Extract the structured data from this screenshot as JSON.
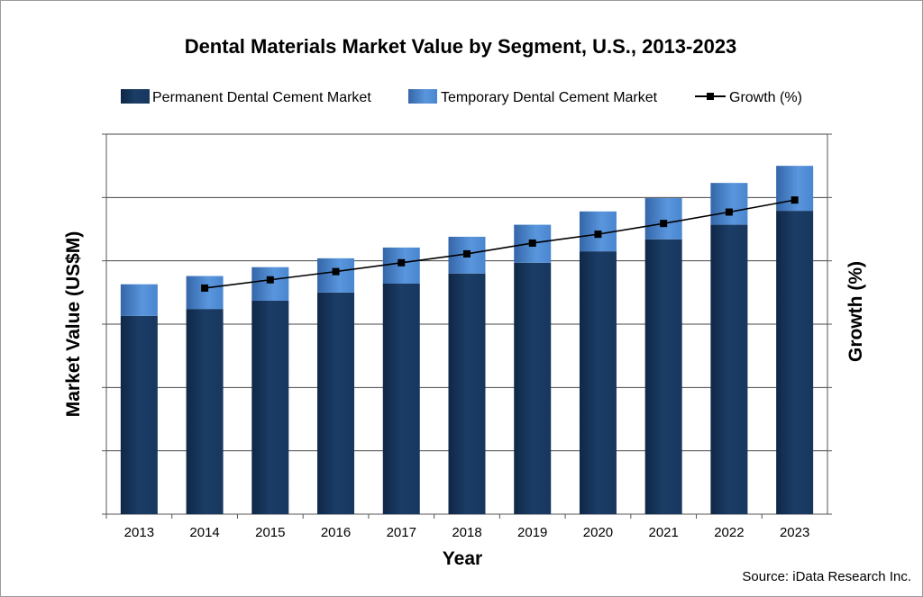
{
  "chart_data": {
    "type": "bar",
    "stacked": true,
    "title": "Dental Materials Market Value by Segment, U.S., 2013-2023",
    "xlabel": "Year",
    "ylabel": "Market Value (US$M)",
    "y2label": "Growth (%)",
    "y_tick_labels_shown": false,
    "ylim": [
      0,
      6
    ],
    "grid": true,
    "legend_placement": "top",
    "categories": [
      "2013",
      "2014",
      "2015",
      "2016",
      "2017",
      "2018",
      "2019",
      "2020",
      "2021",
      "2022",
      "2023"
    ],
    "series": [
      {
        "name": "Permanent Dental Cement Market",
        "type": "bar",
        "color": "#17375e",
        "values": [
          3.13,
          3.24,
          3.37,
          3.5,
          3.64,
          3.8,
          3.97,
          4.15,
          4.34,
          4.57,
          4.79
        ]
      },
      {
        "name": "Temporary Dental Cement Market",
        "type": "bar",
        "color": "#4a86cf",
        "values": [
          0.5,
          0.52,
          0.53,
          0.54,
          0.57,
          0.58,
          0.6,
          0.63,
          0.65,
          0.66,
          0.71
        ]
      },
      {
        "name": "Growth (%)",
        "type": "line",
        "axis": "secondary",
        "color": "#000000",
        "values": [
          null,
          3.57,
          3.7,
          3.83,
          3.97,
          4.11,
          4.28,
          4.42,
          4.59,
          4.77,
          4.96
        ]
      }
    ]
  },
  "source": "Source: iData Research Inc."
}
